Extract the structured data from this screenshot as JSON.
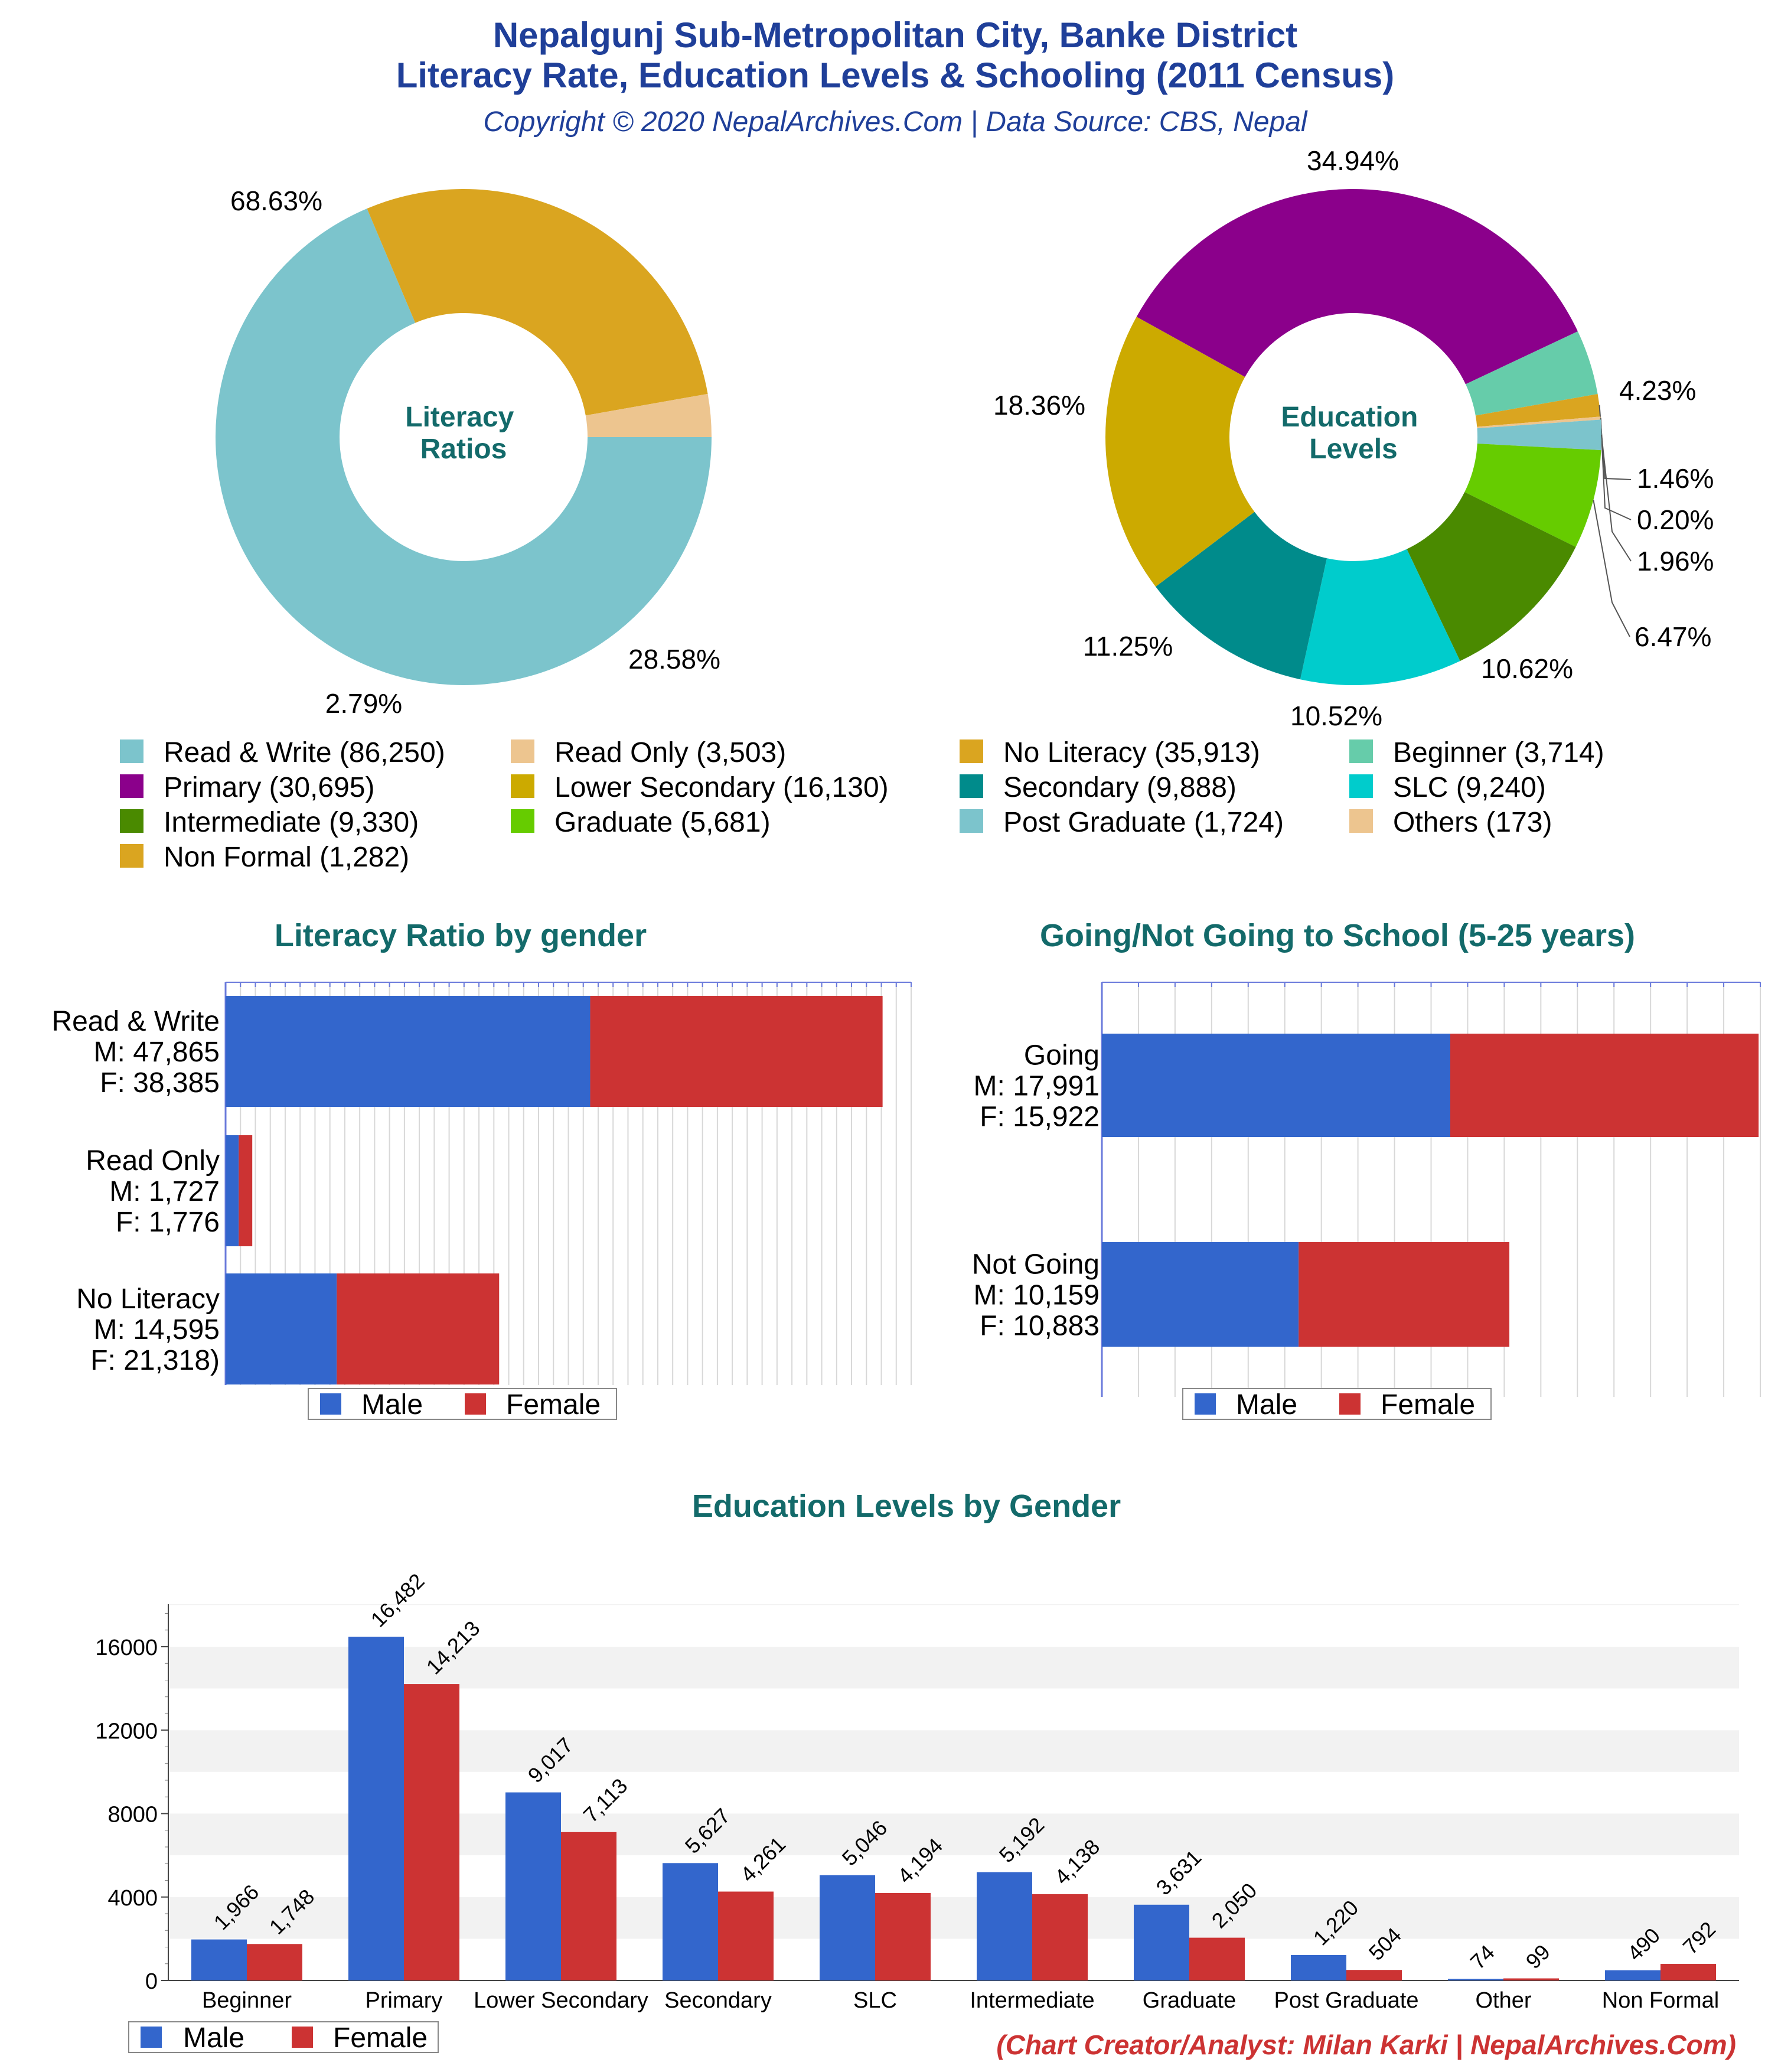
{
  "header": {
    "title_line1": "Nepalgunj Sub-Metropolitan City, Banke District",
    "title_line2": "Literacy Rate, Education Levels & Schooling (2011 Census)",
    "subtitle": "Copyright © 2020 NepalArchives.Com | Data Source: CBS, Nepal"
  },
  "colors": {
    "title": "#1f3f99",
    "teal_title": "#136a6a",
    "male": "#3366cc",
    "female": "#cc3333",
    "credit": "#cc3333"
  },
  "legend_main": [
    {
      "label": "Read & Write (86,250)",
      "color": "#7cc4cc"
    },
    {
      "label": "Read Only (3,503)",
      "color": "#edc58f"
    },
    {
      "label": "No Literacy (35,913)",
      "color": "#daa520"
    },
    {
      "label": "Beginner (3,714)",
      "color": "#66ccaa"
    },
    {
      "label": "Primary (30,695)",
      "color": "#8b008b"
    },
    {
      "label": "Lower Secondary (16,130)",
      "color": "#ccaa00"
    },
    {
      "label": "Secondary (9,888)",
      "color": "#008b8b"
    },
    {
      "label": "SLC (9,240)",
      "color": "#00cccc"
    },
    {
      "label": "Intermediate (9,330)",
      "color": "#4a8a00"
    },
    {
      "label": "Graduate (5,681)",
      "color": "#66cc00"
    },
    {
      "label": "Post Graduate (1,724)",
      "color": "#7cc4cc"
    },
    {
      "label": "Others (173)",
      "color": "#edc58f"
    },
    {
      "label": "Non Formal (1,282)",
      "color": "#daa520"
    }
  ],
  "chart_data": [
    {
      "type": "pie",
      "title": "Literacy Ratios",
      "donut": true,
      "slices": [
        {
          "name": "Read & Write",
          "value": 86250,
          "label": "68.63%",
          "color": "#7cc4cc"
        },
        {
          "name": "No Literacy",
          "value": 35913,
          "label": "28.58%",
          "color": "#daa520"
        },
        {
          "name": "Read Only",
          "value": 3503,
          "label": "2.79%",
          "color": "#edc58f"
        }
      ]
    },
    {
      "type": "pie",
      "title": "Education Levels",
      "donut": true,
      "slices": [
        {
          "name": "Primary",
          "value": 30695,
          "label": "34.94%",
          "color": "#8b008b"
        },
        {
          "name": "Beginner",
          "value": 3714,
          "label": "4.23%",
          "color": "#66ccaa"
        },
        {
          "name": "Non Formal",
          "value": 1282,
          "label": "1.46%",
          "color": "#daa520"
        },
        {
          "name": "Others",
          "value": 173,
          "label": "0.20%",
          "color": "#edc58f"
        },
        {
          "name": "Post Graduate",
          "value": 1724,
          "label": "1.96%",
          "color": "#7cc4cc"
        },
        {
          "name": "Graduate",
          "value": 5681,
          "label": "6.47%",
          "color": "#66cc00"
        },
        {
          "name": "Intermediate",
          "value": 9330,
          "label": "10.62%",
          "color": "#4a8a00"
        },
        {
          "name": "SLC",
          "value": 9240,
          "label": "10.52%",
          "color": "#00cccc"
        },
        {
          "name": "Secondary",
          "value": 9888,
          "label": "11.25%",
          "color": "#008b8b"
        },
        {
          "name": "Lower Secondary",
          "value": 16130,
          "label": "18.36%",
          "color": "#ccaa00"
        }
      ]
    },
    {
      "type": "bar",
      "orientation": "horizontal",
      "stacked": true,
      "title": "Literacy Ratio by gender",
      "xlim": [
        0,
        90000
      ],
      "categories": [
        {
          "label_lines": [
            "Read & Write",
            "M: 47,865",
            "F: 38,385"
          ],
          "male": 47865,
          "female": 38385
        },
        {
          "label_lines": [
            "Read Only",
            "M: 1,727",
            "F: 1,776"
          ],
          "male": 1727,
          "female": 1776
        },
        {
          "label_lines": [
            "No Literacy",
            "M: 14,595",
            "F: 21,318)"
          ],
          "male": 14595,
          "female": 21318
        }
      ],
      "legend": [
        "Male",
        "Female"
      ]
    },
    {
      "type": "bar",
      "orientation": "horizontal",
      "stacked": true,
      "title": "Going/Not Going to School (5-25 years)",
      "xlim": [
        0,
        34000
      ],
      "categories": [
        {
          "label_lines": [
            "Going",
            "M: 17,991",
            "F: 15,922"
          ],
          "male": 17991,
          "female": 15922
        },
        {
          "label_lines": [
            "Not Going",
            "M: 10,159",
            "F: 10,883"
          ],
          "male": 10159,
          "female": 10883
        }
      ],
      "legend": [
        "Male",
        "Female"
      ]
    },
    {
      "type": "bar",
      "title": "Education Levels by Gender",
      "categories": [
        "Beginner",
        "Primary",
        "Lower Secondary",
        "Secondary",
        "SLC",
        "Intermediate",
        "Graduate",
        "Post Graduate",
        "Other",
        "Non Formal"
      ],
      "series": [
        {
          "name": "Male",
          "values": [
            1966,
            16482,
            9017,
            5627,
            5046,
            5192,
            3631,
            1220,
            74,
            490
          ],
          "labels": [
            "1,966",
            "16,482",
            "9,017",
            "5,627",
            "5,046",
            "5,192",
            "3,631",
            "1,220",
            "74",
            "490"
          ]
        },
        {
          "name": "Female",
          "values": [
            1748,
            14213,
            7113,
            4261,
            4194,
            4138,
            2050,
            504,
            99,
            792
          ],
          "labels": [
            "1,748",
            "14,213",
            "7,113",
            "4,261",
            "4,194",
            "4,138",
            "2,050",
            "504",
            "99",
            "792"
          ]
        }
      ],
      "yticks": [
        "0",
        "4000",
        "8000",
        "12000",
        "16000"
      ],
      "ylim": [
        0,
        18500
      ],
      "legend": [
        "Male",
        "Female"
      ]
    }
  ],
  "credit": "(Chart Creator/Analyst: Milan Karki | NepalArchives.Com)"
}
